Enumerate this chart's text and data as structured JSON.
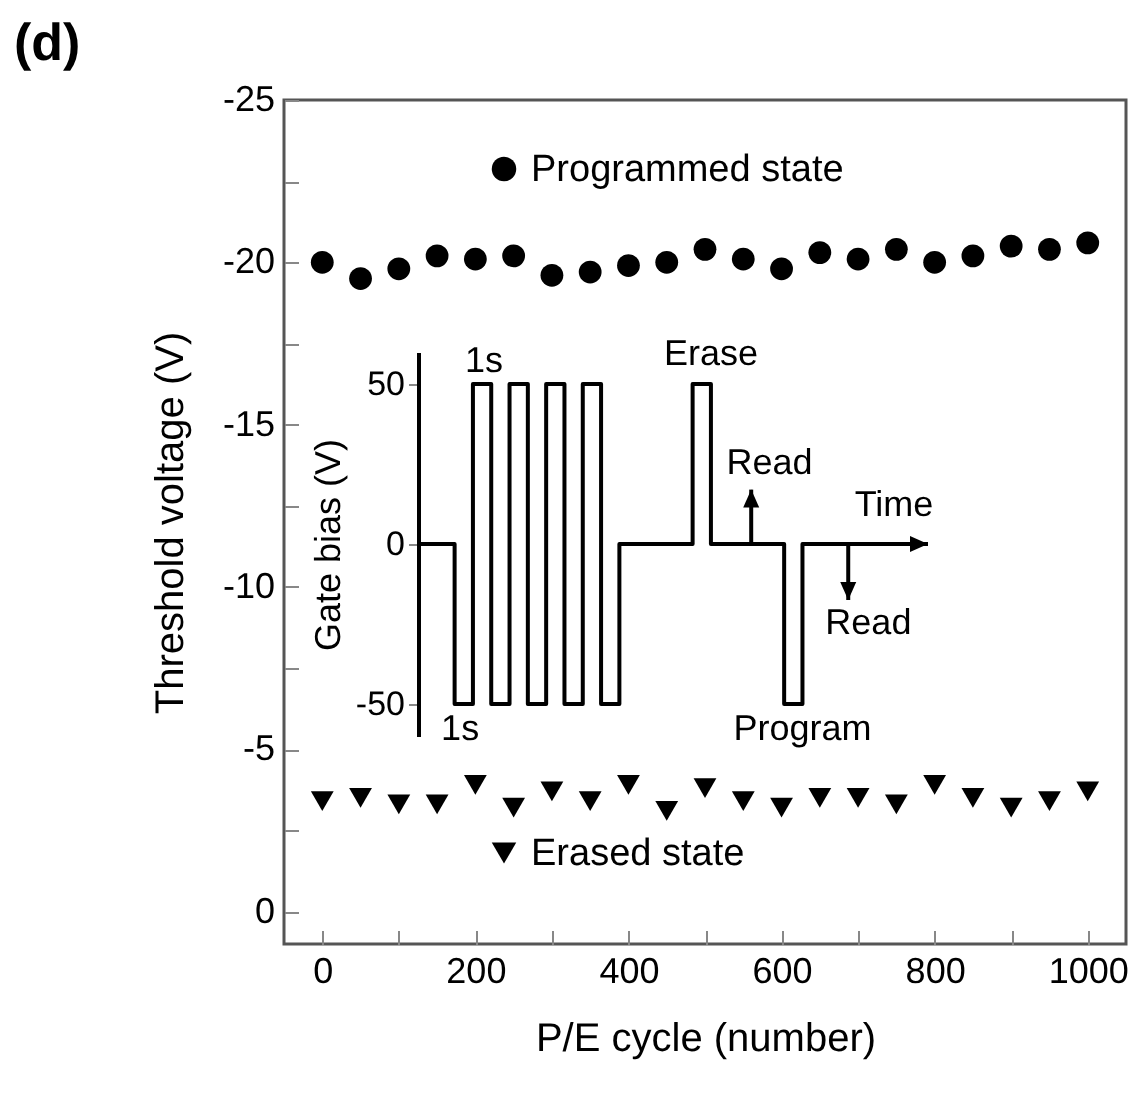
{
  "chart_data": [
    {
      "type": "scatter",
      "title": "(d)",
      "xlabel": "P/E cycle (number)",
      "ylabel": "Threshold voltage (V)",
      "x": [
        0,
        50,
        100,
        150,
        200,
        250,
        300,
        350,
        400,
        450,
        500,
        550,
        600,
        650,
        700,
        750,
        800,
        850,
        900,
        950,
        1000
      ],
      "series": [
        {
          "name": "Programmed state",
          "color": "#000000",
          "marker": "circle",
          "values": [
            -20.0,
            -19.5,
            -19.8,
            -20.2,
            -20.1,
            -20.2,
            -19.6,
            -19.7,
            -19.9,
            -20.0,
            -20.4,
            -20.1,
            -19.8,
            -20.3,
            -20.1,
            -20.4,
            -20.0,
            -20.2,
            -20.5,
            -20.4,
            -20.6
          ]
        },
        {
          "name": "Erased state",
          "color": "#000000",
          "marker": "triangle-down",
          "values": [
            -3.4,
            -3.5,
            -3.3,
            -3.3,
            -3.9,
            -3.2,
            -3.7,
            -3.4,
            -3.9,
            -3.1,
            -3.8,
            -3.4,
            -3.2,
            -3.5,
            -3.5,
            -3.3,
            -3.9,
            -3.5,
            -3.2,
            -3.4,
            -3.7
          ]
        }
      ],
      "xlim": [
        -50,
        1050
      ],
      "ylim": [
        1,
        -25
      ],
      "xticks": [
        0,
        {
          "value": 100,
          "label": null
        },
        200,
        {
          "value": 300,
          "label": null
        },
        400,
        {
          "value": 500,
          "label": null
        },
        600,
        {
          "value": 700,
          "label": null
        },
        800,
        {
          "value": 900,
          "label": null
        },
        1000
      ],
      "yticks": [
        0,
        {
          "value": -2.5,
          "label": null
        },
        -5,
        {
          "value": -7.5,
          "label": null
        },
        -10,
        {
          "value": -12.5,
          "label": null
        },
        -15,
        {
          "value": -17.5,
          "label": null
        },
        -20,
        {
          "value": -22.5,
          "label": null
        },
        -25
      ],
      "legend": "top",
      "grid": false
    },
    {
      "type": "step",
      "ylabel": "Gate bias (V)",
      "categories": [
        null,
        null,
        null,
        null,
        null,
        null,
        null,
        null,
        null,
        null,
        null,
        null,
        null,
        null,
        null,
        null,
        null,
        null,
        null,
        null,
        null,
        null,
        null,
        null,
        null,
        null,
        null
      ],
      "values": [
        0,
        0,
        -50,
        50,
        -50,
        50,
        -50,
        50,
        -50,
        50,
        -50,
        0,
        0,
        0,
        0,
        50,
        0,
        0,
        0,
        0,
        -50,
        0,
        0,
        0,
        0,
        0,
        0
      ],
      "color": "#000000",
      "ylim": [
        -60,
        60
      ],
      "yticks": [
        -50,
        0,
        50
      ],
      "tick_labels": "y",
      "annotations": [
        "1s",
        "Erase",
        "Read",
        "Time",
        "Read",
        "1s",
        "Program"
      ]
    }
  ]
}
